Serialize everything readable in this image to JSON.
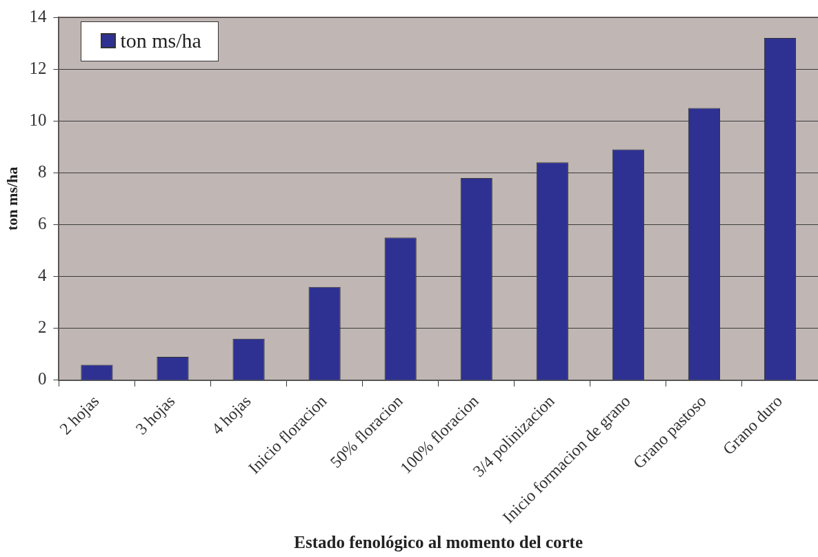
{
  "chart_data": {
    "type": "bar",
    "xlabel": "Estado fenológico al momento del corte",
    "ylabel": "ton ms/ha",
    "categories": [
      "2 hojas",
      "3 hojas",
      "4 hojas",
      "Inicio floracion",
      "50% floracion",
      "100% floracion",
      "3/4 polinizacion",
      "Inicio formacion de grano",
      "Grano pastoso",
      "Grano duro"
    ],
    "series": [
      {
        "name": "ton ms/ha",
        "color": "#2e3192",
        "values": [
          0.6,
          0.9,
          1.6,
          3.6,
          5.5,
          7.8,
          8.4,
          8.9,
          10.5,
          13.2
        ]
      }
    ],
    "ylim": [
      0,
      14
    ],
    "yticks": [
      0,
      2,
      4,
      6,
      8,
      10,
      12,
      14
    ],
    "grid": "y",
    "legend": "top left"
  }
}
